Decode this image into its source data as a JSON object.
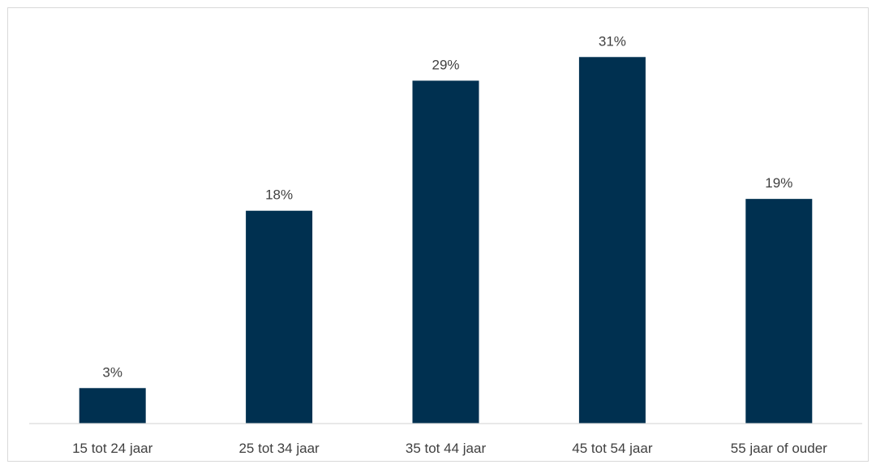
{
  "chart_data": {
    "type": "bar",
    "categories": [
      "15 tot 24 jaar",
      "25 tot 34 jaar",
      "35 tot 44 jaar",
      "45 tot 54 jaar",
      "55 jaar of ouder"
    ],
    "values": [
      3,
      18,
      29,
      31,
      19
    ],
    "data_labels": [
      "3%",
      "18%",
      "29%",
      "31%",
      "19%"
    ],
    "title": "",
    "xlabel": "",
    "ylabel": "",
    "ylim": [
      0,
      35
    ],
    "grid": false,
    "legend": "none",
    "bar_color": "#003050"
  }
}
